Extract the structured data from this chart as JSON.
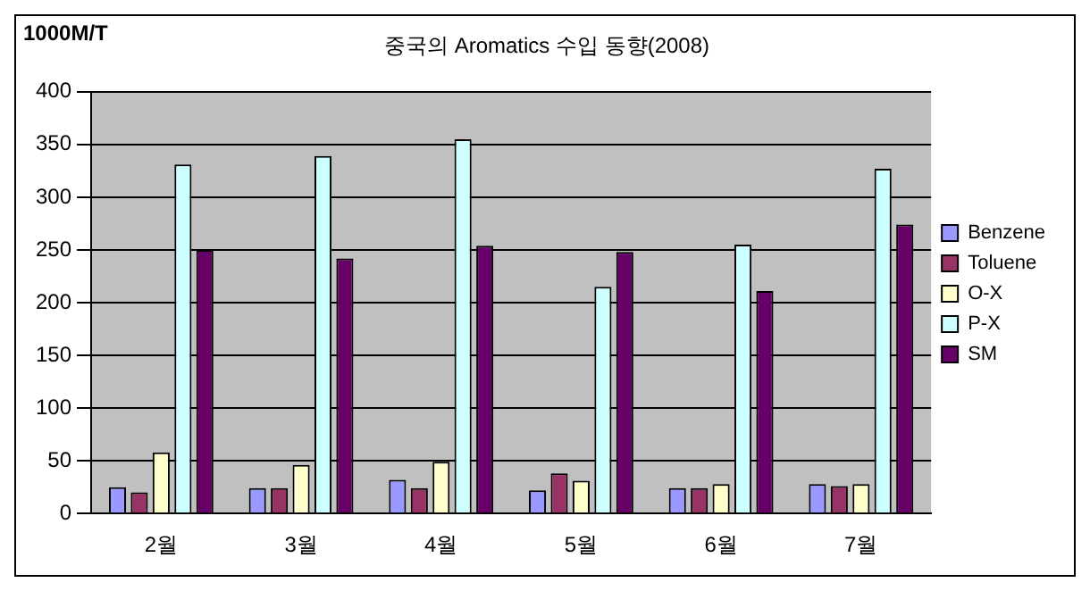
{
  "chart_data": {
    "type": "bar",
    "title": "중국의 Aromatics 수입 동향(2008)",
    "ylabel": "1000M/T",
    "categories": [
      "2월",
      "3월",
      "4월",
      "5월",
      "6월",
      "7월"
    ],
    "series": [
      {
        "name": "Benzene",
        "color": "#9999ff",
        "values": [
          25,
          24,
          32,
          22,
          24,
          28
        ]
      },
      {
        "name": "Toluene",
        "color": "#993366",
        "values": [
          20,
          24,
          24,
          38,
          24,
          26
        ]
      },
      {
        "name": "O-X",
        "color": "#ffffcc",
        "values": [
          58,
          46,
          49,
          31,
          28,
          28
        ]
      },
      {
        "name": "P-X",
        "color": "#ccffff",
        "values": [
          331,
          339,
          355,
          215,
          255,
          327
        ]
      },
      {
        "name": "SM",
        "color": "#660066",
        "values": [
          250,
          242,
          254,
          248,
          211,
          274
        ]
      }
    ],
    "ylim": [
      0,
      400
    ],
    "yticks": [
      0,
      50,
      100,
      150,
      200,
      250,
      300,
      350,
      400
    ],
    "grid": "y",
    "legend": "right"
  }
}
